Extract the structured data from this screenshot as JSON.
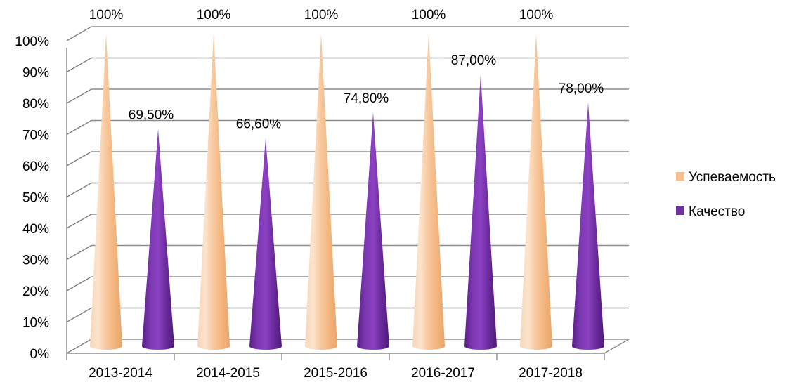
{
  "chart_data": {
    "type": "bar",
    "style": "3d-cone",
    "categories": [
      "2013-2014",
      "2014-2015",
      "2015-2016",
      "2016-2017",
      "2017-2018"
    ],
    "series": [
      {
        "name": "Успеваемость",
        "values": [
          100,
          100,
          100,
          100,
          100
        ],
        "data_labels": [
          "100%",
          "100%",
          "100%",
          "100%",
          "100%"
        ],
        "color": "#FAC090"
      },
      {
        "name": "Качество",
        "values": [
          69.5,
          66.6,
          74.8,
          87.0,
          78.0
        ],
        "data_labels": [
          "69,50%",
          "66,60%",
          "74,80%",
          "87,00%",
          "78,00%"
        ],
        "color": "#7030A0"
      }
    ],
    "y_ticks": [
      "0%",
      "10%",
      "20%",
      "30%",
      "40%",
      "50%",
      "60%",
      "70%",
      "80%",
      "90%",
      "100%"
    ],
    "ylim": [
      0,
      100
    ],
    "grid": true,
    "legend_position": "right"
  }
}
